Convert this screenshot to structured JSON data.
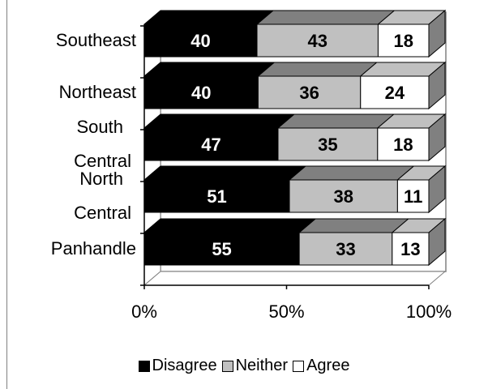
{
  "chart_data": {
    "type": "bar",
    "stacked": true,
    "orientation": "horizontal",
    "percent_stacked": true,
    "three_d": true,
    "categories": [
      "Southeast",
      "Northeast",
      "South Central",
      "North Central",
      "Panhandle"
    ],
    "category_label_lines": [
      [
        "Southeast"
      ],
      [
        "Northeast"
      ],
      [
        "South",
        "Central"
      ],
      [
        "North",
        "Central"
      ],
      [
        "Panhandle"
      ]
    ],
    "series": [
      {
        "name": "Disagree",
        "color": "#000000",
        "label_color": "#ffffff",
        "values": [
          40,
          40,
          47,
          51,
          55
        ]
      },
      {
        "name": "Neither",
        "color": "#c0c0c0",
        "label_color": "#000000",
        "values": [
          43,
          36,
          35,
          38,
          33
        ]
      },
      {
        "name": "Agree",
        "color": "#ffffff",
        "label_color": "#000000",
        "values": [
          18,
          24,
          18,
          11,
          13
        ]
      }
    ],
    "xlim": [
      0,
      100
    ],
    "x_ticks": [
      "0%",
      "50%",
      "100%"
    ],
    "grid": false,
    "legend_position": "bottom"
  }
}
